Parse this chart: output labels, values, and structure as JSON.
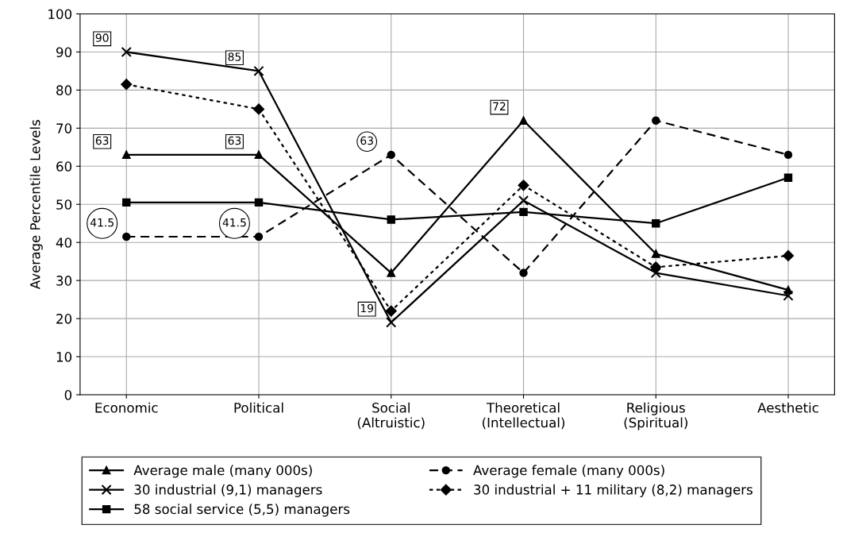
{
  "chart_data": {
    "type": "line",
    "ylabel": "Average Percentile Levels",
    "categories": [
      "Economic",
      "Political",
      "Social\n(Altruistic)",
      "Theoretical\n(Intellectual)",
      "Religious\n(Spiritual)",
      "Aesthetic"
    ],
    "ylim": [
      0,
      100
    ],
    "yticks": [
      0,
      10,
      20,
      30,
      40,
      50,
      60,
      70,
      80,
      90,
      100
    ],
    "grid": true,
    "legend": "bottom",
    "series": [
      {
        "name": "Average male (many 000s)",
        "color": "#000000",
        "marker": "triangle",
        "line_style": "solid",
        "values": [
          63,
          63,
          32,
          72,
          37,
          27.5
        ],
        "value_labels": [
          "63",
          "63",
          null,
          "72",
          null,
          null
        ]
      },
      {
        "name": "Average female (many 000s)",
        "color": "#000000",
        "marker": "circle",
        "line_style": "dashed",
        "values": [
          41.5,
          41.5,
          63,
          32,
          72,
          63
        ],
        "value_labels": [
          "41.5",
          "41.5",
          "63",
          null,
          null,
          null
        ]
      },
      {
        "name": "30 industrial (9,1) managers",
        "color": "#000000",
        "marker": "cross",
        "line_style": "solid",
        "values": [
          90,
          85,
          19,
          51,
          32,
          26
        ],
        "value_labels": [
          "90",
          "85",
          "19",
          null,
          null,
          null
        ]
      },
      {
        "name": "30 industrial + 11 military (8,2) managers",
        "color": "#000000",
        "marker": "diamond",
        "line_style": "dotted",
        "values": [
          81.5,
          75,
          22,
          55,
          33.5,
          36.5
        ]
      },
      {
        "name": "58 social service (5,5) managers",
        "color": "#000000",
        "marker": "square",
        "line_style": "solid",
        "values": [
          50.5,
          50.5,
          46,
          48,
          45,
          57
        ]
      }
    ]
  }
}
